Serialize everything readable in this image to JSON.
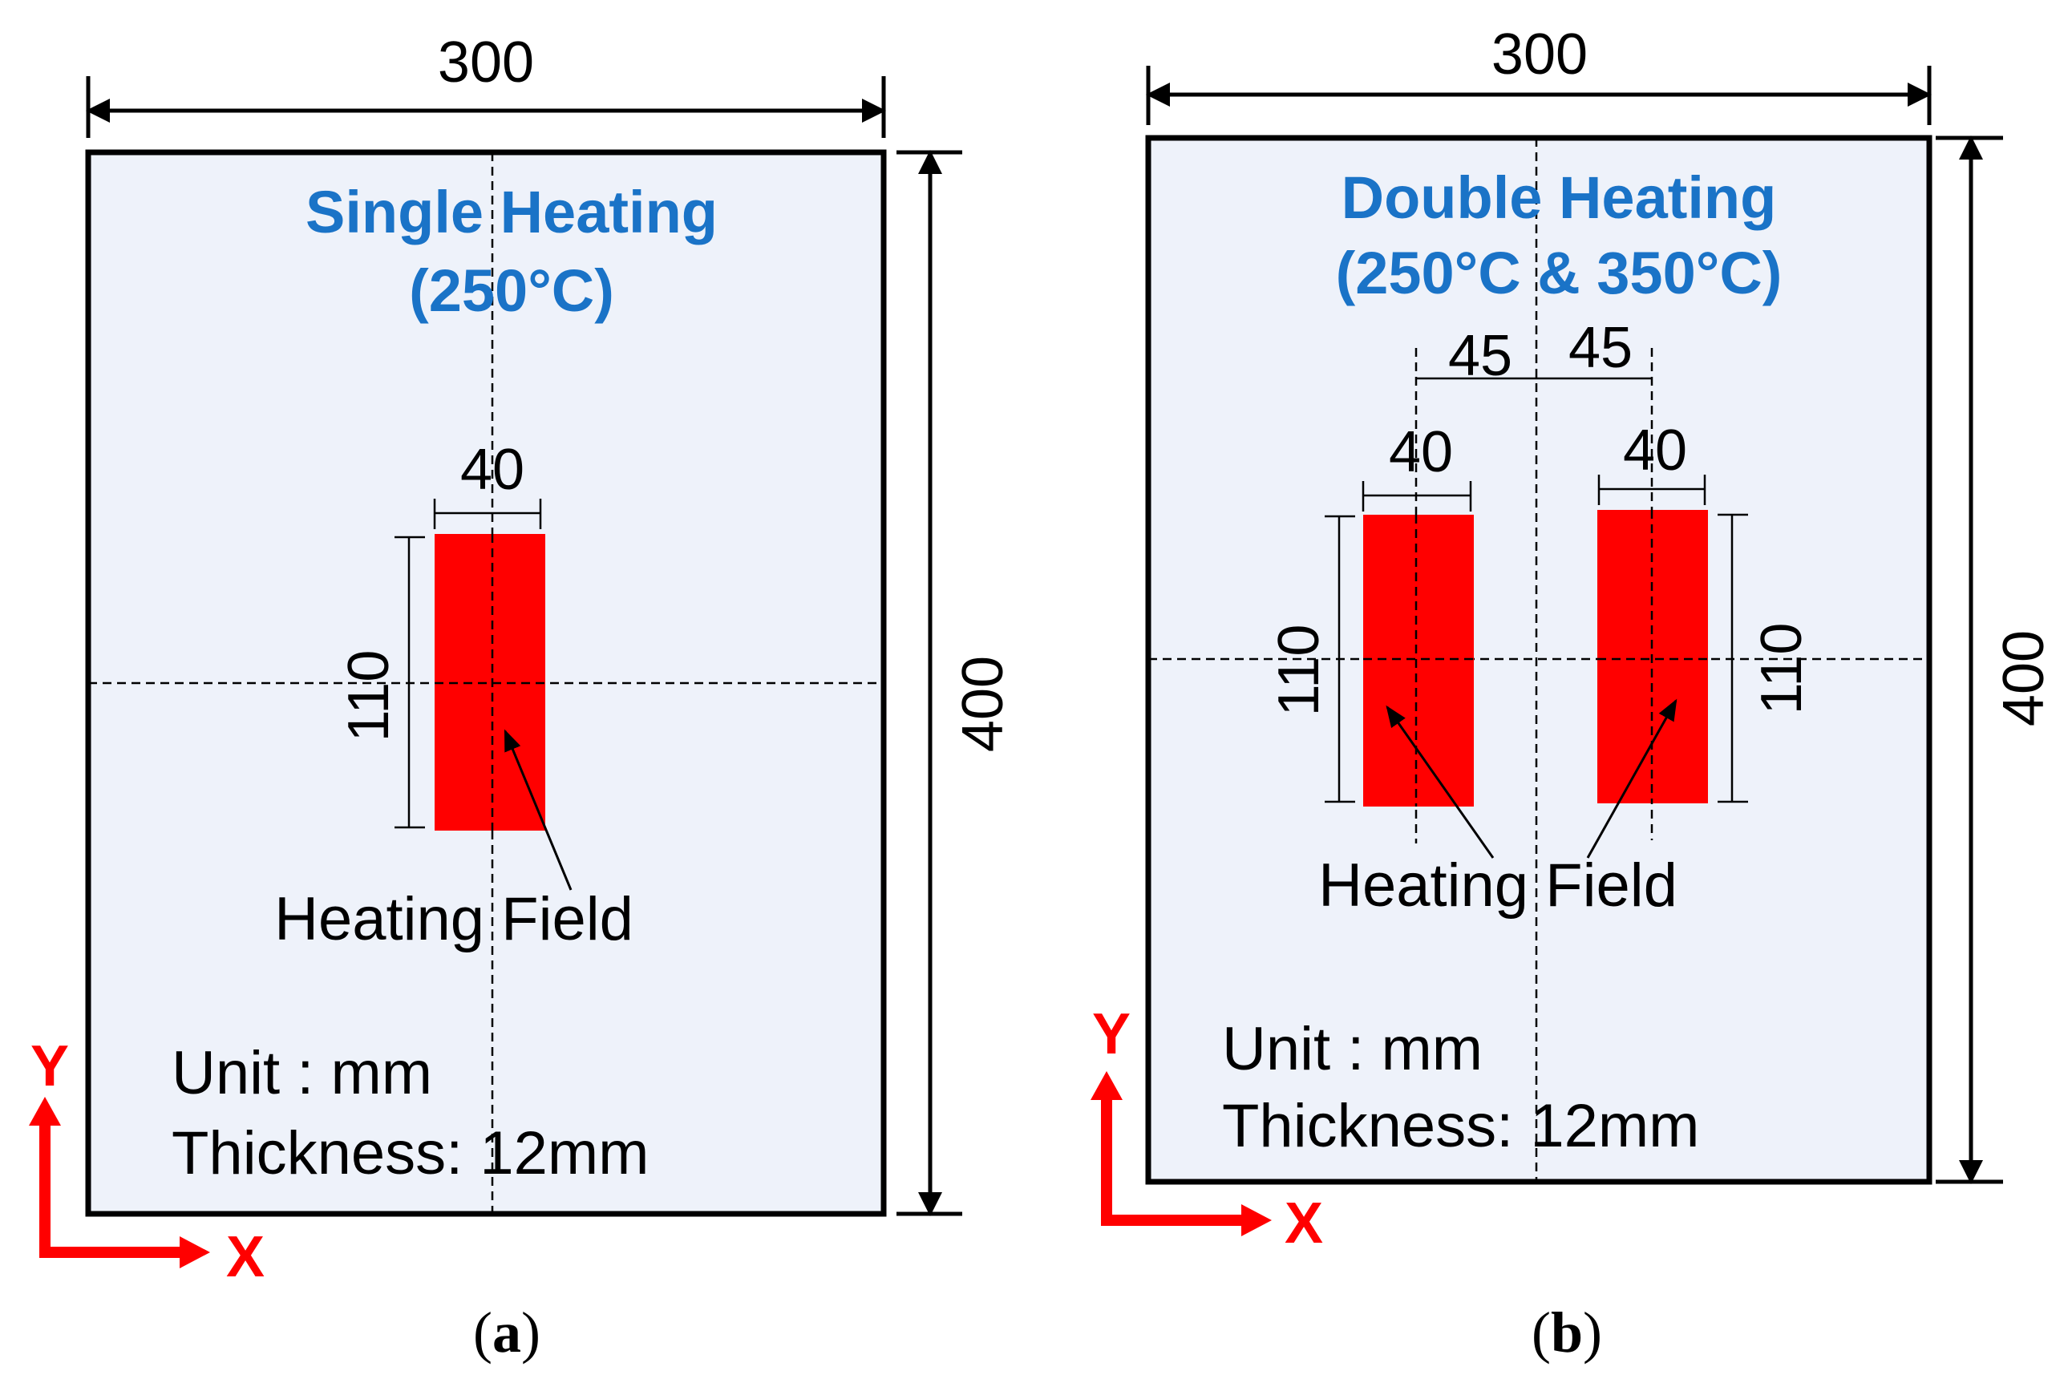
{
  "panels": [
    {
      "title_line1": "Single Heating",
      "title_line2": "(250°C)",
      "width_dim": "300",
      "height_dim": "400",
      "field_width": "40",
      "field_length": "110",
      "field_label": "Heating Field",
      "unit_text": "Unit : mm",
      "thickness_text": "Thickness: 12mm",
      "caption_letter": "a"
    },
    {
      "title_line1": "Double Heating",
      "title_line2": "(250°C & 350°C)",
      "width_dim": "300",
      "height_dim": "400",
      "spacing_left": "45",
      "spacing_right": "45",
      "field_width_left": "40",
      "field_width_right": "40",
      "field_length_left": "110",
      "field_length_right": "110",
      "field_label": "Heating Field",
      "unit_text": "Unit : mm",
      "thickness_text": "Thickness: 12mm",
      "caption_letter": "b"
    }
  ],
  "axes": {
    "x": "X",
    "y": "Y"
  },
  "colors": {
    "heating_field": "#ff0000",
    "title": "#1a73c7",
    "plate": "#eef2fa",
    "axis": "#ff0000"
  }
}
